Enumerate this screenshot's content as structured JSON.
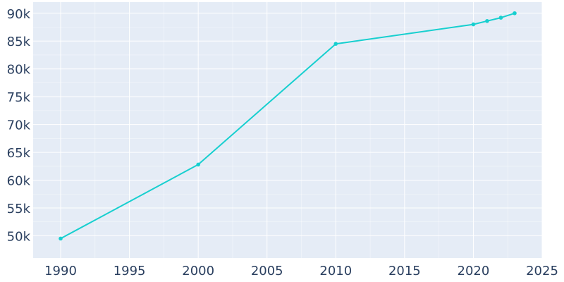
{
  "chart_data": {
    "type": "line",
    "title": "",
    "xlabel": "",
    "ylabel": "",
    "xlim": [
      1988,
      2025
    ],
    "ylim": [
      46000,
      92000
    ],
    "x_ticks": [
      1990,
      1995,
      2000,
      2005,
      2010,
      2015,
      2020,
      2025
    ],
    "x_tick_labels": [
      "1990",
      "1995",
      "2000",
      "2005",
      "2010",
      "2015",
      "2020",
      "2025"
    ],
    "y_ticks": [
      50000,
      55000,
      60000,
      65000,
      70000,
      75000,
      80000,
      85000,
      90000
    ],
    "y_tick_labels": [
      "50k",
      "55k",
      "60k",
      "65k",
      "70k",
      "75k",
      "80k",
      "85k",
      "90k"
    ],
    "grid": true,
    "legend": "none",
    "series": [
      {
        "color": "#17cfcf",
        "x": [
          1990,
          2000,
          2010,
          2020,
          2021,
          2022,
          2023
        ],
        "y": [
          49500,
          62800,
          84500,
          88000,
          88600,
          89200,
          90000
        ]
      }
    ]
  },
  "colors": {
    "plot_background": "#e5ecf6",
    "grid": "#ffffff",
    "tick_text": "#2a3f5f"
  }
}
